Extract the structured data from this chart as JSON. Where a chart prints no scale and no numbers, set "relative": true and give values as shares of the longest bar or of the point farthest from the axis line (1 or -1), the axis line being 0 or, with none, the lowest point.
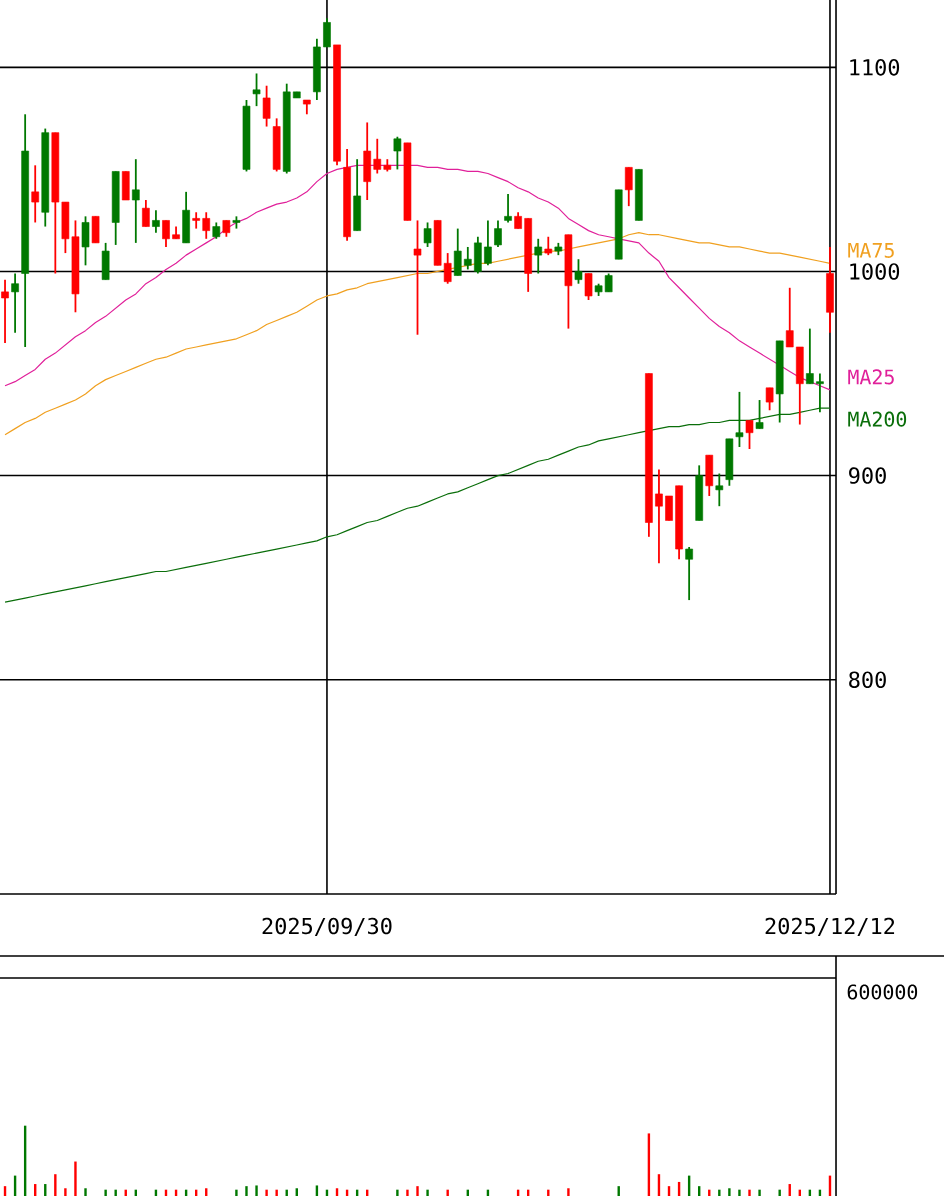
{
  "chart_data": [
    {
      "type": "candlestick",
      "categories": [
        null,
        null,
        null,
        null,
        null,
        null,
        null,
        null,
        null,
        null,
        null,
        null,
        null,
        null,
        null,
        null,
        null,
        null,
        null,
        null,
        null,
        null,
        null,
        null,
        null,
        null,
        null,
        null,
        null,
        null,
        null,
        null,
        "2025/09/30",
        null,
        null,
        null,
        null,
        null,
        null,
        null,
        null,
        null,
        null,
        null,
        null,
        null,
        null,
        null,
        null,
        null,
        null,
        null,
        null,
        null,
        null,
        null,
        null,
        null,
        null,
        null,
        null,
        null,
        null,
        null,
        null,
        null,
        null,
        null,
        null,
        null,
        null,
        null,
        null,
        null,
        null,
        null,
        null,
        null,
        null,
        null,
        null,
        null,
        "2025/12/12"
      ],
      "ohlc": [
        [
          990,
          996,
          965,
          987
        ],
        [
          990,
          999,
          970,
          994
        ],
        [
          999,
          1077,
          963,
          1059
        ],
        [
          1039,
          1052,
          1024,
          1034
        ],
        [
          1029,
          1070,
          1022,
          1068
        ],
        [
          1068,
          1068,
          999,
          1034
        ],
        [
          1034,
          1034,
          1009,
          1016
        ],
        [
          1017,
          1025,
          980,
          989
        ],
        [
          1012,
          1027,
          1003,
          1024
        ],
        [
          1027,
          1027,
          1014,
          1014
        ],
        [
          996,
          1014,
          996,
          1010
        ],
        [
          1024,
          1049,
          1013,
          1049
        ],
        [
          1049,
          1049,
          1035,
          1035
        ],
        [
          1035,
          1055,
          1014,
          1040
        ],
        [
          1031,
          1035,
          1022,
          1022
        ],
        [
          1022,
          1030,
          1019,
          1025
        ],
        [
          1025,
          1025,
          1012,
          1016
        ],
        [
          1018,
          1022,
          1016,
          1016
        ],
        [
          1014,
          1039,
          1014,
          1030
        ],
        [
          1026,
          1029,
          1021,
          1025
        ],
        [
          1026,
          1029,
          1016,
          1020
        ],
        [
          1017,
          1024,
          1016,
          1022
        ],
        [
          1025,
          1025,
          1017,
          1019
        ],
        [
          1024,
          1027,
          1021,
          1025
        ],
        [
          1050,
          1084,
          1049,
          1081
        ],
        [
          1087,
          1097,
          1081,
          1089
        ],
        [
          1085,
          1091,
          1071,
          1075
        ],
        [
          1071,
          1075,
          1049,
          1050
        ],
        [
          1049,
          1092,
          1048,
          1088
        ],
        [
          1085,
          1088,
          1085,
          1088
        ],
        [
          1084,
          1084,
          1077,
          1082
        ],
        [
          1088,
          1114,
          1084,
          1110
        ],
        [
          1110,
          1124,
          1110,
          1122
        ],
        [
          1111,
          1111,
          1052,
          1054
        ],
        [
          1051,
          1060,
          1015,
          1017
        ],
        [
          1020,
          1055,
          1020,
          1037
        ],
        [
          1059,
          1073,
          1035,
          1044
        ],
        [
          1055,
          1065,
          1048,
          1050
        ],
        [
          1052,
          1055,
          1049,
          1050
        ],
        [
          1059,
          1066,
          1050,
          1065
        ],
        [
          1063,
          1063,
          1025,
          1025
        ],
        [
          1011,
          1025,
          969,
          1008
        ],
        [
          1014,
          1024,
          1012,
          1021
        ],
        [
          1025,
          1025,
          1003,
          1003
        ],
        [
          1004,
          1009,
          994,
          995
        ],
        [
          998,
          1021,
          998,
          1010
        ],
        [
          1003,
          1012,
          1001,
          1006
        ],
        [
          1000,
          1017,
          999,
          1014
        ],
        [
          1004,
          1025,
          1003,
          1012
        ],
        [
          1013,
          1025,
          1012,
          1021
        ],
        [
          1025,
          1038,
          1024,
          1027
        ],
        [
          1027,
          1029,
          1021,
          1021
        ],
        [
          1026,
          1026,
          990,
          999
        ],
        [
          1008,
          1016,
          999,
          1012
        ],
        [
          1011,
          1017,
          1008,
          1009
        ],
        [
          1010,
          1014,
          1008,
          1012
        ],
        [
          1018,
          1018,
          972,
          993
        ],
        [
          996,
          1006,
          994,
          1000
        ],
        [
          999,
          999,
          986,
          988
        ],
        [
          990,
          994,
          988,
          993
        ],
        [
          990,
          999,
          990,
          998
        ],
        [
          1006,
          1040,
          1006,
          1040
        ],
        [
          1051,
          1051,
          1032,
          1040
        ],
        [
          1025,
          1050,
          1025,
          1050
        ],
        [
          950,
          950,
          870,
          877
        ],
        [
          891,
          903,
          857,
          885
        ],
        [
          890,
          890,
          878,
          878
        ],
        [
          895,
          895,
          859,
          864
        ],
        [
          859,
          865,
          839,
          864
        ],
        [
          878,
          905,
          878,
          900
        ],
        [
          910,
          910,
          890,
          895
        ],
        [
          893,
          901,
          885,
          895
        ],
        [
          898,
          918,
          895,
          918
        ],
        [
          919,
          941,
          914,
          921
        ],
        [
          927,
          927,
          913,
          921
        ],
        [
          923,
          937,
          923,
          926
        ],
        [
          943,
          943,
          932,
          936
        ],
        [
          940,
          966,
          926,
          966
        ],
        [
          971,
          992,
          963,
          963
        ],
        [
          963,
          963,
          925,
          945
        ],
        [
          945,
          972,
          945,
          950
        ],
        [
          945,
          950,
          931,
          946
        ],
        [
          999,
          1012,
          970,
          980
        ]
      ],
      "colors": [
        "#ff0000",
        "#007800",
        "#007800",
        "#ff0000",
        "#007800",
        "#ff0000",
        "#ff0000",
        "#ff0000",
        "#007800",
        "#ff0000",
        "#007800",
        "#007800",
        "#ff0000",
        "#007800",
        "#ff0000",
        "#007800",
        "#ff0000",
        "#ff0000",
        "#007800",
        "#ff0000",
        "#ff0000",
        "#007800",
        "#ff0000",
        "#007800",
        "#007800",
        "#007800",
        "#ff0000",
        "#ff0000",
        "#007800",
        "#007800",
        "#ff0000",
        "#007800",
        "#007800",
        "#ff0000",
        "#ff0000",
        "#007800",
        "#ff0000",
        "#ff0000",
        "#ff0000",
        "#007800",
        "#ff0000",
        "#ff0000",
        "#007800",
        "#ff0000",
        "#ff0000",
        "#007800",
        "#007800",
        "#007800",
        "#007800",
        "#007800",
        "#007800",
        "#ff0000",
        "#ff0000",
        "#007800",
        "#ff0000",
        "#007800",
        "#ff0000",
        "#007800",
        "#ff0000",
        "#007800",
        "#007800",
        "#007800",
        "#ff0000",
        "#007800",
        "#ff0000",
        "#ff0000",
        "#ff0000",
        "#ff0000",
        "#007800",
        "#007800",
        "#ff0000",
        "#007800",
        "#007800",
        "#007800",
        "#ff0000",
        "#007800",
        "#ff0000",
        "#007800",
        "#ff0000",
        "#ff0000",
        "#007800",
        "#007800",
        "#ff0000"
      ],
      "ylim": [
        695,
        1133
      ],
      "yticks": [
        800,
        900,
        1000,
        1100
      ],
      "grid": true,
      "series": [
        {
          "name": "MA25",
          "type": "line",
          "color": "#e0209a",
          "values": [
            944,
            946,
            949,
            952,
            957,
            960,
            964,
            968,
            971,
            975,
            978,
            982,
            986,
            989,
            994,
            997,
            1001,
            1004,
            1008,
            1011,
            1014,
            1017,
            1021,
            1024,
            1026,
            1029,
            1031,
            1033,
            1034,
            1036,
            1039,
            1044,
            1048,
            1050,
            1051,
            1052,
            1052,
            1052,
            1052,
            1052,
            1052,
            1052,
            1051,
            1051,
            1050,
            1050,
            1049,
            1049,
            1048,
            1046,
            1044,
            1041,
            1039,
            1036,
            1034,
            1031,
            1026,
            1023,
            1020,
            1018,
            1017,
            1016,
            1015,
            1014,
            1009,
            1005,
            997,
            992,
            987,
            982,
            977,
            973,
            970,
            966,
            963,
            960,
            957,
            954,
            951,
            948,
            946,
            944,
            942
          ]
        },
        {
          "name": "MA75",
          "type": "line",
          "color": "#f0a020",
          "values": [
            920,
            923,
            926,
            928,
            931,
            933,
            935,
            937,
            940,
            944,
            947,
            949,
            951,
            953,
            955,
            957,
            958,
            960,
            962,
            963,
            964,
            965,
            966,
            967,
            969,
            971,
            974,
            976,
            978,
            980,
            983,
            986,
            988,
            989,
            991,
            992,
            994,
            995,
            996,
            997,
            998,
            999,
            999,
            1000,
            1001,
            1002,
            1003,
            1004,
            1004,
            1005,
            1006,
            1007,
            1008,
            1009,
            1010,
            1010,
            1011,
            1012,
            1013,
            1014,
            1015,
            1016,
            1018,
            1019,
            1018,
            1018,
            1017,
            1016,
            1015,
            1014,
            1014,
            1013,
            1012,
            1012,
            1011,
            1010,
            1009,
            1009,
            1008,
            1007,
            1006,
            1005,
            1004
          ]
        },
        {
          "name": "MA200",
          "type": "line",
          "color": "#0a6e0a",
          "values": [
            838,
            839,
            840,
            841,
            842,
            843,
            844,
            845,
            846,
            847,
            848,
            849,
            850,
            851,
            852,
            853,
            853,
            854,
            855,
            856,
            857,
            858,
            859,
            860,
            861,
            862,
            863,
            864,
            865,
            866,
            867,
            868,
            870,
            871,
            873,
            875,
            877,
            878,
            880,
            882,
            884,
            885,
            887,
            889,
            891,
            892,
            894,
            896,
            898,
            900,
            901,
            903,
            905,
            907,
            908,
            910,
            912,
            914,
            915,
            917,
            918,
            919,
            920,
            921,
            922,
            923,
            924,
            924,
            925,
            925,
            926,
            926,
            927,
            927,
            927,
            928,
            929,
            930,
            930,
            931,
            932,
            933,
            933
          ]
        }
      ]
    },
    {
      "type": "bar",
      "relative": true,
      "categories": [
        null,
        null,
        null,
        null,
        null,
        null,
        null,
        null,
        null,
        null,
        null,
        null,
        null,
        null,
        null,
        null,
        null,
        null,
        null,
        null,
        null,
        null,
        null,
        null,
        null,
        null,
        null,
        null,
        null,
        null,
        null,
        null,
        null,
        null,
        null,
        null,
        null,
        null,
        null,
        null,
        null,
        null,
        null,
        null,
        null,
        null,
        null,
        null,
        null,
        null,
        null,
        null,
        null,
        null,
        null,
        null,
        null,
        null,
        null,
        null,
        null,
        null,
        null,
        null,
        null,
        null,
        null,
        null,
        null,
        null,
        null,
        null,
        null,
        null,
        null,
        null,
        null,
        null,
        null,
        null,
        null,
        null,
        null
      ],
      "values": [
        0.14,
        0.29,
        1,
        0.17,
        0.17,
        0.31,
        0.11,
        0.49,
        0.11,
        0,
        0.09,
        0.09,
        0.09,
        0.09,
        0,
        0.09,
        0.09,
        0.09,
        0.09,
        0.09,
        0.11,
        0,
        0,
        0.09,
        0.14,
        0.15,
        0.09,
        0.09,
        0.09,
        0.11,
        0,
        0.15,
        0.09,
        0.11,
        0.09,
        0.09,
        0.09,
        0,
        0,
        0.09,
        0.09,
        0.14,
        0.09,
        0,
        0.09,
        0,
        0.09,
        0,
        0.09,
        0,
        0,
        0.09,
        0.09,
        0,
        0.09,
        0,
        0.11,
        0,
        0,
        0,
        0,
        0.14,
        0,
        0,
        0.89,
        0.31,
        0.14,
        0.2,
        0.29,
        0.14,
        0.09,
        0.09,
        0.11,
        0.09,
        0.09,
        0.09,
        0,
        0.09,
        0.17,
        0.09,
        0.09,
        0.09,
        0.29
      ],
      "colors": [
        "#ff0000",
        "#007800",
        "#007800",
        "#ff0000",
        "#007800",
        "#ff0000",
        "#ff0000",
        "#ff0000",
        "#007800",
        "#ff0000",
        "#007800",
        "#007800",
        "#ff0000",
        "#007800",
        "#ff0000",
        "#007800",
        "#ff0000",
        "#ff0000",
        "#007800",
        "#ff0000",
        "#ff0000",
        "#007800",
        "#ff0000",
        "#007800",
        "#007800",
        "#007800",
        "#ff0000",
        "#ff0000",
        "#007800",
        "#007800",
        "#ff0000",
        "#007800",
        "#007800",
        "#ff0000",
        "#ff0000",
        "#007800",
        "#ff0000",
        "#ff0000",
        "#ff0000",
        "#007800",
        "#ff0000",
        "#ff0000",
        "#007800",
        "#ff0000",
        "#ff0000",
        "#007800",
        "#007800",
        "#007800",
        "#007800",
        "#007800",
        "#007800",
        "#ff0000",
        "#ff0000",
        "#007800",
        "#ff0000",
        "#007800",
        "#ff0000",
        "#007800",
        "#ff0000",
        "#007800",
        "#007800",
        "#007800",
        "#ff0000",
        "#007800",
        "#ff0000",
        "#ff0000",
        "#ff0000",
        "#ff0000",
        "#007800",
        "#007800",
        "#ff0000",
        "#007800",
        "#007800",
        "#007800",
        "#ff0000",
        "#007800",
        "#ff0000",
        "#007800",
        "#ff0000",
        "#ff0000",
        "#007800",
        "#007800",
        "#ff0000"
      ],
      "annotations": [
        "600000"
      ]
    }
  ]
}
